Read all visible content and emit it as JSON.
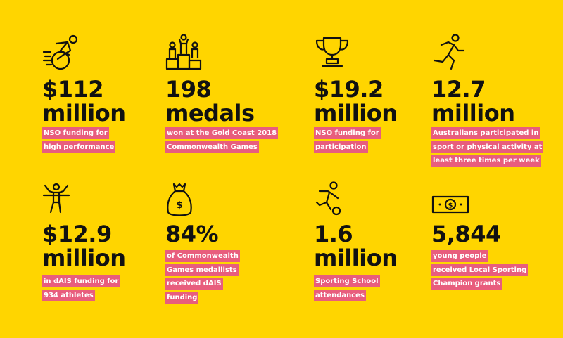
{
  "background_color": "#FFD500",
  "highlight_color": "#E85D7D",
  "stats": [
    {
      "icon": "wheelchair-athlete-icon",
      "value_line1": "$112",
      "value_line2": "million",
      "desc": [
        "NSO funding for",
        "high performance"
      ]
    },
    {
      "icon": "podium-icon",
      "value_line1": "198",
      "value_line2": "medals",
      "desc": [
        "won at the Gold Coast 2018",
        "Commonwealth Games"
      ]
    },
    {
      "icon": "trophy-icon",
      "value_line1": "$19.2",
      "value_line2": "million",
      "desc": [
        "NSO funding for",
        "participation"
      ]
    },
    {
      "icon": "runner-icon",
      "value_line1": "12.7",
      "value_line2": "million",
      "desc": [
        "Australians participated in",
        "sport or physical activity at",
        "least three times per week"
      ]
    },
    {
      "icon": "finish-line-icon",
      "value_line1": "$12.9",
      "value_line2": "million",
      "desc": [
        "in dAIS funding for",
        "934 athletes"
      ]
    },
    {
      "icon": "money-bag-icon",
      "value_line1": "84%",
      "value_line2": "",
      "desc": [
        "of Commonwealth",
        "Games medallists",
        "received dAIS",
        "funding"
      ]
    },
    {
      "icon": "soccer-player-icon",
      "value_line1": "1.6",
      "value_line2": "million",
      "desc": [
        "Sporting School",
        "attendances"
      ]
    },
    {
      "icon": "banknote-icon",
      "value_line1": "5,844",
      "value_line2": "",
      "desc": [
        "young people",
        "received Local Sporting",
        "Champion grants"
      ]
    }
  ]
}
